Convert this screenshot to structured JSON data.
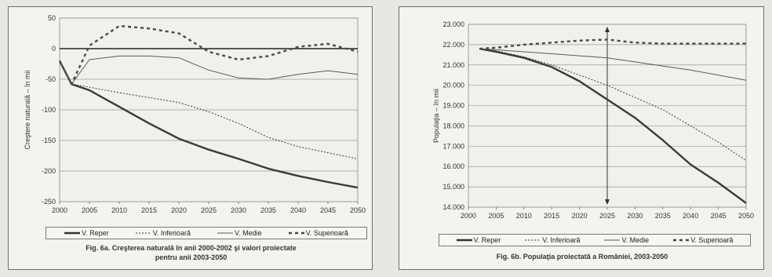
{
  "chart_data": [
    {
      "type": "line",
      "caption_line1": "Fig. 6a. Creşterea naturală în anii 2000-2002 şi valori proiectate",
      "caption_line2": "pentru anii 2003-2050",
      "ylabel": "Creştere naturală – în mii",
      "ylim": [
        -250,
        50
      ],
      "yticks": [
        -250,
        -200,
        -150,
        -100,
        -50,
        0,
        50
      ],
      "xlim": [
        2000,
        2050
      ],
      "xticks": [
        2000,
        2005,
        2010,
        2015,
        2020,
        2025,
        2030,
        2035,
        2040,
        2045,
        2050
      ],
      "grid": true,
      "legend": "bottom",
      "series": [
        {
          "name": "V. Reper",
          "style": "solid-thick",
          "x": [
            2000,
            2002,
            2005,
            2010,
            2015,
            2020,
            2025,
            2030,
            2035,
            2040,
            2045,
            2050
          ],
          "y": [
            -20,
            -58,
            -68,
            -95,
            -122,
            -147,
            -165,
            -180,
            -196,
            -208,
            -218,
            -227
          ]
        },
        {
          "name": "V. Inferioară",
          "style": "dotted",
          "x": [
            2000,
            2002,
            2005,
            2010,
            2015,
            2020,
            2025,
            2030,
            2035,
            2040,
            2045,
            2050
          ],
          "y": [
            -20,
            -58,
            -63,
            -72,
            -80,
            -88,
            -103,
            -122,
            -145,
            -160,
            -170,
            -180
          ]
        },
        {
          "name": "V. Medie",
          "style": "solid-thin",
          "x": [
            2000,
            2002,
            2005,
            2010,
            2015,
            2020,
            2025,
            2030,
            2035,
            2040,
            2045,
            2050
          ],
          "y": [
            -20,
            -58,
            -18,
            -12,
            -12,
            -15,
            -35,
            -48,
            -50,
            -42,
            -36,
            -42
          ]
        },
        {
          "name": "V. Superioară",
          "style": "dashed-thick",
          "x": [
            2000,
            2002,
            2005,
            2010,
            2015,
            2020,
            2025,
            2030,
            2035,
            2040,
            2045,
            2050
          ],
          "y": [
            -20,
            -58,
            5,
            37,
            33,
            25,
            -5,
            -18,
            -12,
            3,
            8,
            -5
          ]
        }
      ]
    },
    {
      "type": "line",
      "caption_line1": "Fig. 6b. Populaţia proiectată a României, 2003-2050",
      "ylabel": "Populaţia – în mii",
      "ylim": [
        14000,
        23000
      ],
      "yticks": [
        14000,
        15000,
        16000,
        17000,
        18000,
        19000,
        20000,
        21000,
        22000,
        23000
      ],
      "ytick_labels": [
        "14.000",
        "15.000",
        "16.000",
        "17.000",
        "18.000",
        "19.000",
        "20.000",
        "21.000",
        "22.000",
        "23.000"
      ],
      "xlim": [
        2000,
        2050
      ],
      "xticks": [
        2000,
        2005,
        2010,
        2015,
        2020,
        2025,
        2030,
        2035,
        2040,
        2045,
        2050
      ],
      "grid": true,
      "legend": "bottom",
      "annotation_arrow_x": 2025,
      "series": [
        {
          "name": "V. Reper",
          "style": "solid-thick",
          "x": [
            2002,
            2005,
            2010,
            2015,
            2020,
            2025,
            2030,
            2035,
            2040,
            2045,
            2050
          ],
          "y": [
            21800,
            21650,
            21350,
            20900,
            20200,
            19300,
            18400,
            17300,
            16100,
            15200,
            14200
          ]
        },
        {
          "name": "V. Inferioară",
          "style": "dotted",
          "x": [
            2002,
            2005,
            2010,
            2015,
            2020,
            2025,
            2030,
            2035,
            2040,
            2045,
            2050
          ],
          "y": [
            21800,
            21700,
            21400,
            21000,
            20500,
            20000,
            19400,
            18800,
            18000,
            17200,
            16300
          ]
        },
        {
          "name": "V. Medie",
          "style": "solid-thin",
          "x": [
            2002,
            2005,
            2010,
            2015,
            2020,
            2025,
            2030,
            2035,
            2040,
            2045,
            2050
          ],
          "y": [
            21800,
            21750,
            21650,
            21550,
            21450,
            21350,
            21150,
            20950,
            20750,
            20500,
            20250
          ]
        },
        {
          "name": "V. Superioară",
          "style": "dashed-thick",
          "x": [
            2002,
            2005,
            2010,
            2015,
            2020,
            2025,
            2030,
            2035,
            2040,
            2045,
            2050
          ],
          "y": [
            21800,
            21850,
            22000,
            22100,
            22200,
            22250,
            22100,
            22050,
            22050,
            22050,
            22050
          ]
        }
      ]
    }
  ]
}
